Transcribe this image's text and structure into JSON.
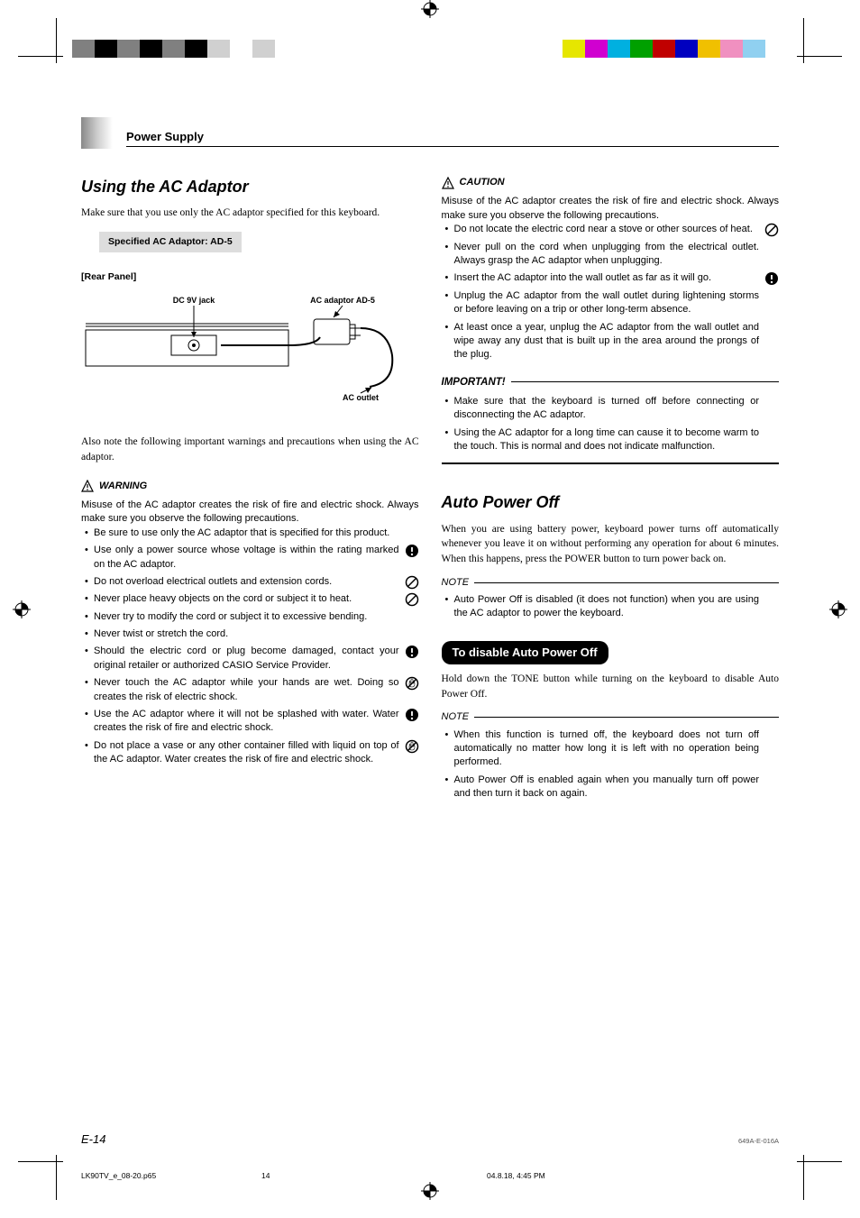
{
  "header": {
    "title": "Power Supply"
  },
  "reg_colors_left": [
    "#808080",
    "#000000",
    "#808080",
    "#000000",
    "#808080",
    "#000000",
    "#d0d0d0",
    "#ffffff",
    "#d0d0d0",
    "#ffffff"
  ],
  "reg_colors_right": [
    "#e6e600",
    "#d000d0",
    "#00b0e0",
    "#00a000",
    "#c00000",
    "#0000c0",
    "#f0c000",
    "#f090c0",
    "#90d0f0",
    "#ffffff"
  ],
  "left": {
    "h1": "Using the AC Adaptor",
    "intro": "Make sure that you use only the AC adaptor specified for this keyboard.",
    "spec": "Specified AC Adaptor: AD-5",
    "rear_label": "[Rear Panel]",
    "diag_labels": {
      "jack": "DC 9V jack",
      "adaptor": "AC adaptor AD-5",
      "outlet": "AC outlet"
    },
    "also_note": "Also note the following important warnings and precautions when using the AC adaptor.",
    "warning_title": "WARNING",
    "warning_intro": "Misuse of the AC adaptor creates the risk of fire and electric shock. Always make sure you observe the following precautions.",
    "warning_items": [
      {
        "text": "Be sure to use only the AC adaptor that is specified for this product.",
        "icon": null
      },
      {
        "text": "Use only a power source whose voltage is within the rating marked on the AC adaptor.",
        "icon": "excl"
      },
      {
        "text": "Do not overload electrical outlets and extension cords.",
        "icon": "prohibit"
      },
      {
        "text": "Never place heavy objects on the cord or subject it to heat.",
        "icon": "prohibit"
      },
      {
        "text": "Never try to modify the cord or subject it to excessive bending.",
        "icon": null
      },
      {
        "text": "Never twist or stretch the cord.",
        "icon": null
      },
      {
        "text": "Should the electric cord or plug become damaged, contact your original retailer or authorized CASIO Service Provider.",
        "icon": "excl"
      },
      {
        "text": "Never touch the AC adaptor while your hands are wet. Doing so creates the risk of electric shock.",
        "icon": "nohand"
      },
      {
        "text": "Use the AC adaptor where it will not be splashed with water. Water creates the risk of fire and electric shock.",
        "icon": "excl"
      },
      {
        "text": "Do not place a vase or any other container filled with liquid on top of the AC adaptor. Water creates the risk of fire and electric shock.",
        "icon": "nohand"
      }
    ]
  },
  "right": {
    "caution_title": "CAUTION",
    "caution_intro": "Misuse of the AC adaptor creates the risk of fire and electric shock. Always make sure you observe the following precautions.",
    "caution_items": [
      {
        "text": "Do not locate the electric cord near a stove or other sources of heat.",
        "icon": "prohibit"
      },
      {
        "text": "Never pull on the cord when unplugging from the electrical outlet.  Always grasp the AC adaptor when unplugging.",
        "icon": null
      },
      {
        "text": "Insert the AC adaptor into the wall outlet as far as it will go.",
        "icon": "excl"
      },
      {
        "text": "Unplug the AC adaptor from the wall outlet during lightening storms or before leaving on a trip or other long-term absence.",
        "icon": null
      },
      {
        "text": "At least once a year, unplug the AC adaptor from the wall outlet and wipe away any dust that is built up in the area around the prongs of the plug.",
        "icon": null
      }
    ],
    "important_title": "IMPORTANT!",
    "important_items": [
      "Make sure that the keyboard is turned off before connecting or disconnecting the AC adaptor.",
      "Using the AC adaptor for a long time can cause it to become warm to the touch. This is normal and does not indicate malfunction."
    ],
    "auto_h": "Auto Power Off",
    "auto_p": "When you are using battery power, keyboard power turns off automatically whenever you leave it on without performing any operation for about 6 minutes. When this happens, press the POWER button to turn power back on.",
    "note1_title": "NOTE",
    "note1_items": [
      "Auto Power Off is disabled (it does not function) when you are using the AC adaptor to power the keyboard."
    ],
    "disable_h": "To disable Auto Power Off",
    "disable_p": "Hold down the TONE button while turning on the keyboard to disable Auto Power Off.",
    "note2_title": "NOTE",
    "note2_items": [
      "When this function is turned off, the keyboard does not turn off automatically no matter how long it is left with no operation being performed.",
      "Auto Power Off is enabled again when you manually turn off power and then turn it back on again."
    ]
  },
  "footer": {
    "page": "E-14",
    "docid": "649A-E-016A",
    "file": "LK90TV_e_08-20.p65",
    "sheet": "14",
    "date": "04.8.18, 4:45 PM"
  }
}
